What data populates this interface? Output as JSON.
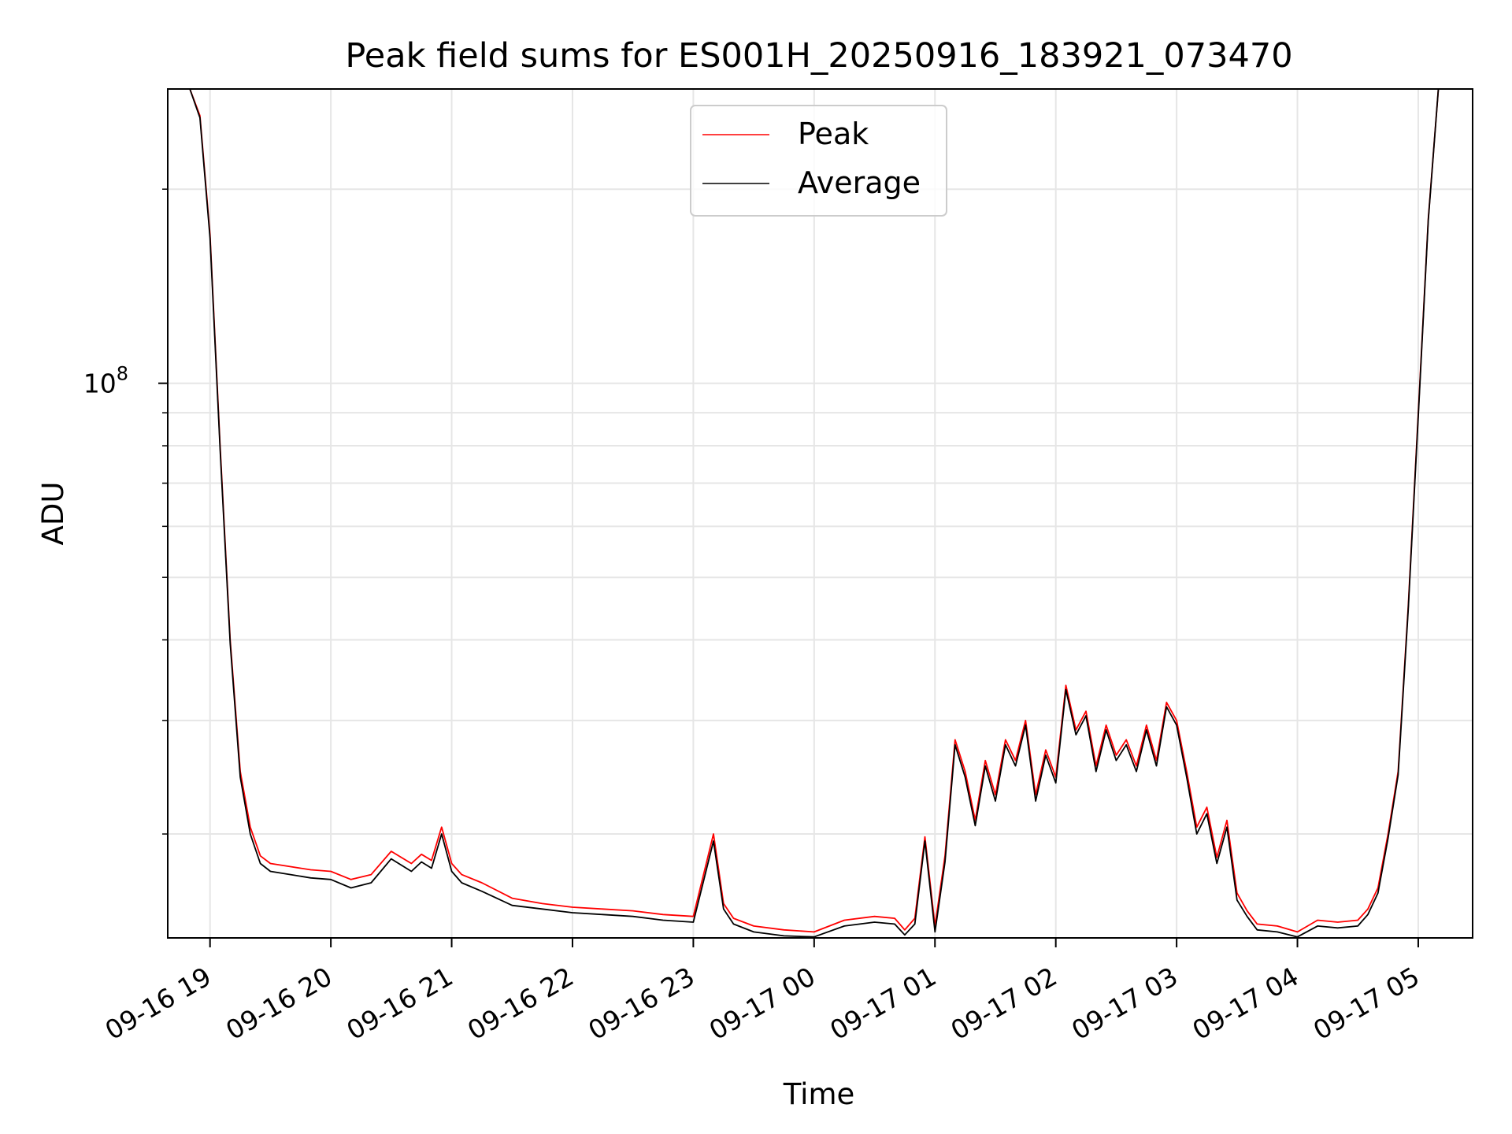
{
  "chart_data": {
    "type": "line",
    "title": "Peak field sums for ES001H_20250916_183921_073470",
    "xlabel": "Time",
    "ylabel": "ADU",
    "yscale": "log",
    "xlim": [
      "09-16 18:39",
      "09-17 05:27"
    ],
    "ylim": [
      13800000,
      286000000
    ],
    "x_ticks": [
      "09-16 19",
      "09-16 20",
      "09-16 21",
      "09-16 22",
      "09-16 23",
      "09-17 00",
      "09-17 01",
      "09-17 02",
      "09-17 03",
      "09-17 04",
      "09-17 05"
    ],
    "y_ticks_major": [
      {
        "value": 100000000,
        "label": "10",
        "exponent": "8"
      }
    ],
    "y_ticks_minor": [
      20000000,
      30000000,
      40000000,
      50000000,
      60000000,
      70000000,
      80000000,
      90000000,
      200000000
    ],
    "grid": true,
    "legend_position": "top-center",
    "x": [
      "09-16 18:39",
      "09-16 18:50",
      "09-16 18:55",
      "09-16 19:00",
      "09-16 19:05",
      "09-16 19:10",
      "09-16 19:15",
      "09-16 19:20",
      "09-16 19:25",
      "09-16 19:30",
      "09-16 19:40",
      "09-16 19:50",
      "09-16 20:00",
      "09-16 20:10",
      "09-16 20:20",
      "09-16 20:30",
      "09-16 20:40",
      "09-16 20:45",
      "09-16 20:50",
      "09-16 20:55",
      "09-16 21:00",
      "09-16 21:05",
      "09-16 21:15",
      "09-16 21:30",
      "09-16 21:45",
      "09-16 22:00",
      "09-16 22:15",
      "09-16 22:30",
      "09-16 22:45",
      "09-16 23:00",
      "09-16 23:10",
      "09-16 23:15",
      "09-16 23:20",
      "09-16 23:30",
      "09-16 23:45",
      "09-17 00:00",
      "09-17 00:15",
      "09-17 00:30",
      "09-17 00:40",
      "09-17 00:45",
      "09-17 00:50",
      "09-17 00:55",
      "09-17 01:00",
      "09-17 01:05",
      "09-17 01:10",
      "09-17 01:15",
      "09-17 01:20",
      "09-17 01:25",
      "09-17 01:30",
      "09-17 01:35",
      "09-17 01:40",
      "09-17 01:45",
      "09-17 01:50",
      "09-17 01:55",
      "09-17 02:00",
      "09-17 02:05",
      "09-17 02:10",
      "09-17 02:15",
      "09-17 02:20",
      "09-17 02:25",
      "09-17 02:30",
      "09-17 02:35",
      "09-17 02:40",
      "09-17 02:45",
      "09-17 02:50",
      "09-17 02:55",
      "09-17 03:00",
      "09-17 03:05",
      "09-17 03:10",
      "09-17 03:15",
      "09-17 03:20",
      "09-17 03:25",
      "09-17 03:30",
      "09-17 03:35",
      "09-17 03:40",
      "09-17 03:50",
      "09-17 04:00",
      "09-17 04:10",
      "09-17 04:20",
      "09-17 04:30",
      "09-17 04:35",
      "09-17 04:40",
      "09-17 04:45",
      "09-17 04:50",
      "09-17 04:55",
      "09-17 05:00",
      "09-17 05:05",
      "09-17 05:10",
      "09-17 05:15",
      "09-17 05:27"
    ],
    "series": [
      {
        "name": "Peak",
        "color": "#ff0000",
        "values": [
          286000000,
          286000000,
          260000000,
          170000000,
          80000000,
          40000000,
          25000000,
          20500000,
          18500000,
          18000000,
          17800000,
          17600000,
          17500000,
          17000000,
          17300000,
          18800000,
          18000000,
          18600000,
          18200000,
          20500000,
          18000000,
          17300000,
          16800000,
          15900000,
          15600000,
          15400000,
          15300000,
          15200000,
          15000000,
          14900000,
          20000000,
          15600000,
          14800000,
          14400000,
          14200000,
          14100000,
          14700000,
          14900000,
          14800000,
          14200000,
          14800000,
          19800000,
          14400000,
          18500000,
          28000000,
          25000000,
          21000000,
          26000000,
          23000000,
          28000000,
          26000000,
          30000000,
          23000000,
          27000000,
          24500000,
          34000000,
          29000000,
          31000000,
          25500000,
          29500000,
          26500000,
          28000000,
          25500000,
          29500000,
          26000000,
          32000000,
          30000000,
          25000000,
          20500000,
          22000000,
          18400000,
          21000000,
          16200000,
          15200000,
          14500000,
          14400000,
          14100000,
          14700000,
          14600000,
          14700000,
          15300000,
          16500000,
          20000000,
          25000000,
          45000000,
          90000000,
          180000000,
          286000000,
          286000000,
          286000000
        ]
      },
      {
        "name": "Average",
        "color": "#000000",
        "values": [
          286000000,
          286000000,
          258000000,
          168000000,
          79000000,
          39500000,
          24500000,
          20000000,
          18000000,
          17500000,
          17300000,
          17100000,
          17000000,
          16500000,
          16800000,
          18300000,
          17500000,
          18100000,
          17700000,
          20000000,
          17500000,
          16800000,
          16300000,
          15500000,
          15300000,
          15100000,
          15000000,
          14900000,
          14700000,
          14600000,
          19500000,
          15300000,
          14500000,
          14100000,
          13900000,
          13850000,
          14400000,
          14600000,
          14500000,
          13950000,
          14500000,
          19500000,
          14100000,
          18100000,
          27500000,
          24500000,
          20600000,
          25500000,
          22500000,
          27500000,
          25500000,
          29500000,
          22500000,
          26500000,
          24000000,
          33500000,
          28500000,
          30500000,
          25000000,
          29000000,
          26000000,
          27500000,
          25000000,
          29000000,
          25500000,
          31500000,
          29500000,
          24500000,
          20000000,
          21500000,
          18000000,
          20500000,
          15800000,
          14900000,
          14200000,
          14100000,
          13850000,
          14400000,
          14300000,
          14400000,
          15000000,
          16200000,
          19700000,
          24700000,
          44500000,
          89000000,
          179000000,
          286000000,
          286000000,
          286000000
        ]
      }
    ]
  }
}
